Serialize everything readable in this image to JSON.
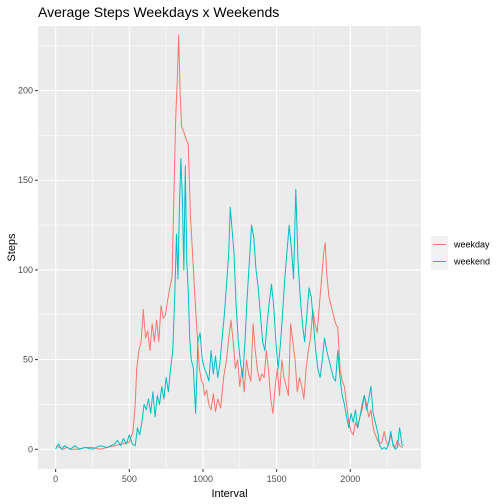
{
  "chart_data": {
    "type": "line",
    "title": "Average Steps Weekdays x Weekends",
    "xlabel": "Interval",
    "ylabel": "Steps",
    "xlim": [
      -120,
      2480
    ],
    "ylim": [
      -11,
      236
    ],
    "x_ticks": [
      0,
      500,
      1000,
      1500,
      2000
    ],
    "y_ticks": [
      0,
      50,
      100,
      150,
      200
    ],
    "grid": true,
    "legend_position": "right",
    "series": [
      {
        "name": "weekday",
        "color": "#F8766D",
        "points": [
          [
            0,
            2
          ],
          [
            25,
            1
          ],
          [
            50,
            0
          ],
          [
            75,
            1
          ],
          [
            100,
            0
          ],
          [
            150,
            0
          ],
          [
            200,
            1
          ],
          [
            250,
            1
          ],
          [
            300,
            0
          ],
          [
            350,
            1
          ],
          [
            400,
            2
          ],
          [
            450,
            3
          ],
          [
            500,
            4
          ],
          [
            525,
            10
          ],
          [
            540,
            25
          ],
          [
            550,
            45
          ],
          [
            565,
            55
          ],
          [
            580,
            60
          ],
          [
            595,
            78
          ],
          [
            610,
            62
          ],
          [
            625,
            66
          ],
          [
            640,
            55
          ],
          [
            655,
            70
          ],
          [
            670,
            60
          ],
          [
            685,
            72
          ],
          [
            700,
            60
          ],
          [
            715,
            80
          ],
          [
            730,
            73
          ],
          [
            745,
            75
          ],
          [
            760,
            83
          ],
          [
            775,
            90
          ],
          [
            790,
            96
          ],
          [
            805,
            150
          ],
          [
            815,
            185
          ],
          [
            825,
            205
          ],
          [
            835,
            231
          ],
          [
            845,
            198
          ],
          [
            855,
            180
          ],
          [
            870,
            177
          ],
          [
            885,
            173
          ],
          [
            900,
            170
          ],
          [
            915,
            130
          ],
          [
            930,
            108
          ],
          [
            945,
            85
          ],
          [
            960,
            65
          ],
          [
            975,
            45
          ],
          [
            990,
            38
          ],
          [
            1000,
            37
          ],
          [
            1010,
            30
          ],
          [
            1025,
            33
          ],
          [
            1040,
            25
          ],
          [
            1055,
            22
          ],
          [
            1070,
            31
          ],
          [
            1085,
            21
          ],
          [
            1100,
            28
          ],
          [
            1120,
            23
          ],
          [
            1140,
            40
          ],
          [
            1160,
            50
          ],
          [
            1175,
            62
          ],
          [
            1190,
            72
          ],
          [
            1205,
            60
          ],
          [
            1220,
            45
          ],
          [
            1235,
            50
          ],
          [
            1250,
            35
          ],
          [
            1265,
            45
          ],
          [
            1280,
            32
          ],
          [
            1295,
            50
          ],
          [
            1310,
            42
          ],
          [
            1325,
            38
          ],
          [
            1340,
            70
          ],
          [
            1355,
            55
          ],
          [
            1370,
            44
          ],
          [
            1385,
            38
          ],
          [
            1400,
            42
          ],
          [
            1415,
            40
          ],
          [
            1430,
            55
          ],
          [
            1445,
            44
          ],
          [
            1460,
            28
          ],
          [
            1475,
            20
          ],
          [
            1490,
            35
          ],
          [
            1505,
            45
          ],
          [
            1520,
            30
          ],
          [
            1535,
            50
          ],
          [
            1550,
            40
          ],
          [
            1565,
            35
          ],
          [
            1580,
            30
          ],
          [
            1595,
            70
          ],
          [
            1610,
            60
          ],
          [
            1625,
            50
          ],
          [
            1640,
            32
          ],
          [
            1655,
            40
          ],
          [
            1670,
            35
          ],
          [
            1685,
            28
          ],
          [
            1700,
            45
          ],
          [
            1715,
            55
          ],
          [
            1730,
            62
          ],
          [
            1745,
            78
          ],
          [
            1760,
            70
          ],
          [
            1775,
            65
          ],
          [
            1790,
            80
          ],
          [
            1805,
            95
          ],
          [
            1820,
            110
          ],
          [
            1830,
            115
          ],
          [
            1840,
            98
          ],
          [
            1855,
            85
          ],
          [
            1870,
            80
          ],
          [
            1885,
            75
          ],
          [
            1900,
            70
          ],
          [
            1915,
            68
          ],
          [
            1930,
            45
          ],
          [
            1945,
            38
          ],
          [
            1960,
            35
          ],
          [
            1975,
            25
          ],
          [
            1990,
            15
          ],
          [
            2005,
            10
          ],
          [
            2020,
            8
          ],
          [
            2035,
            15
          ],
          [
            2050,
            12
          ],
          [
            2065,
            18
          ],
          [
            2080,
            22
          ],
          [
            2095,
            30
          ],
          [
            2110,
            25
          ],
          [
            2125,
            18
          ],
          [
            2140,
            22
          ],
          [
            2155,
            12
          ],
          [
            2170,
            8
          ],
          [
            2185,
            5
          ],
          [
            2200,
            3
          ],
          [
            2215,
            4
          ],
          [
            2230,
            10
          ],
          [
            2245,
            4
          ],
          [
            2260,
            2
          ],
          [
            2275,
            8
          ],
          [
            2290,
            3
          ],
          [
            2305,
            1
          ],
          [
            2320,
            5
          ],
          [
            2335,
            2
          ],
          [
            2355,
            1
          ]
        ]
      },
      {
        "name": "weekend",
        "color": "#00BFC4",
        "points": [
          [
            0,
            0
          ],
          [
            20,
            3
          ],
          [
            40,
            0
          ],
          [
            60,
            2
          ],
          [
            80,
            1
          ],
          [
            100,
            0
          ],
          [
            130,
            2
          ],
          [
            160,
            0
          ],
          [
            200,
            1
          ],
          [
            250,
            0
          ],
          [
            300,
            2
          ],
          [
            350,
            1
          ],
          [
            400,
            3
          ],
          [
            420,
            5
          ],
          [
            440,
            2
          ],
          [
            460,
            6
          ],
          [
            480,
            3
          ],
          [
            500,
            8
          ],
          [
            520,
            3
          ],
          [
            540,
            2
          ],
          [
            555,
            12
          ],
          [
            570,
            8
          ],
          [
            585,
            15
          ],
          [
            600,
            25
          ],
          [
            615,
            22
          ],
          [
            630,
            28
          ],
          [
            645,
            20
          ],
          [
            660,
            32
          ],
          [
            675,
            18
          ],
          [
            690,
            30
          ],
          [
            705,
            25
          ],
          [
            720,
            35
          ],
          [
            735,
            28
          ],
          [
            750,
            40
          ],
          [
            765,
            32
          ],
          [
            780,
            45
          ],
          [
            795,
            55
          ],
          [
            810,
            90
          ],
          [
            820,
            120
          ],
          [
            830,
            95
          ],
          [
            840,
            135
          ],
          [
            850,
            162
          ],
          [
            860,
            140
          ],
          [
            870,
            100
          ],
          [
            880,
            158
          ],
          [
            890,
            105
          ],
          [
            900,
            88
          ],
          [
            910,
            62
          ],
          [
            920,
            50
          ],
          [
            935,
            45
          ],
          [
            950,
            20
          ],
          [
            965,
            60
          ],
          [
            980,
            65
          ],
          [
            995,
            50
          ],
          [
            1010,
            45
          ],
          [
            1025,
            42
          ],
          [
            1040,
            38
          ],
          [
            1055,
            55
          ],
          [
            1070,
            42
          ],
          [
            1085,
            52
          ],
          [
            1100,
            40
          ],
          [
            1115,
            48
          ],
          [
            1130,
            62
          ],
          [
            1145,
            75
          ],
          [
            1160,
            92
          ],
          [
            1175,
            110
          ],
          [
            1185,
            135
          ],
          [
            1195,
            125
          ],
          [
            1210,
            110
          ],
          [
            1225,
            80
          ],
          [
            1240,
            60
          ],
          [
            1255,
            48
          ],
          [
            1270,
            40
          ],
          [
            1285,
            60
          ],
          [
            1300,
            85
          ],
          [
            1315,
            105
          ],
          [
            1330,
            125
          ],
          [
            1345,
            118
          ],
          [
            1360,
            100
          ],
          [
            1375,
            90
          ],
          [
            1390,
            75
          ],
          [
            1405,
            60
          ],
          [
            1420,
            55
          ],
          [
            1435,
            70
          ],
          [
            1450,
            82
          ],
          [
            1465,
            92
          ],
          [
            1480,
            80
          ],
          [
            1495,
            60
          ],
          [
            1510,
            45
          ],
          [
            1525,
            58
          ],
          [
            1540,
            75
          ],
          [
            1555,
            95
          ],
          [
            1570,
            110
          ],
          [
            1585,
            125
          ],
          [
            1600,
            112
          ],
          [
            1615,
            95
          ],
          [
            1630,
            145
          ],
          [
            1645,
            105
          ],
          [
            1660,
            85
          ],
          [
            1675,
            70
          ],
          [
            1690,
            60
          ],
          [
            1705,
            75
          ],
          [
            1720,
            90
          ],
          [
            1735,
            85
          ],
          [
            1750,
            70
          ],
          [
            1765,
            55
          ],
          [
            1780,
            45
          ],
          [
            1795,
            40
          ],
          [
            1810,
            50
          ],
          [
            1825,
            62
          ],
          [
            1840,
            55
          ],
          [
            1855,
            50
          ],
          [
            1870,
            45
          ],
          [
            1885,
            40
          ],
          [
            1900,
            38
          ],
          [
            1915,
            55
          ],
          [
            1930,
            40
          ],
          [
            1945,
            30
          ],
          [
            1960,
            25
          ],
          [
            1975,
            18
          ],
          [
            1990,
            12
          ],
          [
            2005,
            20
          ],
          [
            2020,
            15
          ],
          [
            2035,
            22
          ],
          [
            2050,
            12
          ],
          [
            2065,
            18
          ],
          [
            2080,
            25
          ],
          [
            2095,
            30
          ],
          [
            2110,
            22
          ],
          [
            2125,
            28
          ],
          [
            2140,
            35
          ],
          [
            2155,
            20
          ],
          [
            2170,
            15
          ],
          [
            2185,
            10
          ],
          [
            2200,
            2
          ],
          [
            2215,
            0
          ],
          [
            2230,
            1
          ],
          [
            2245,
            0
          ],
          [
            2260,
            3
          ],
          [
            2275,
            10
          ],
          [
            2290,
            2
          ],
          [
            2305,
            0
          ],
          [
            2320,
            1
          ],
          [
            2335,
            12
          ],
          [
            2350,
            3
          ],
          [
            2360,
            2
          ]
        ]
      }
    ]
  }
}
